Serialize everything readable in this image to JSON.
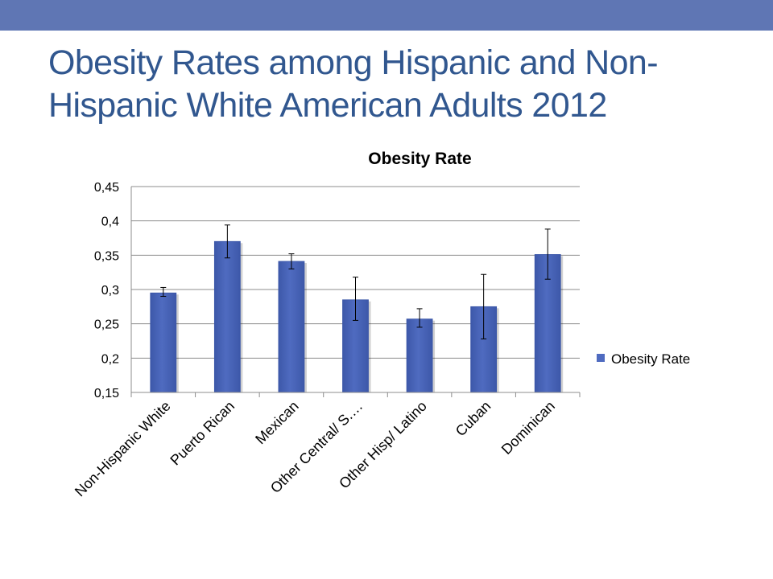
{
  "slide": {
    "title": "Obesity Rates among Hispanic and Non-Hispanic White American Adults 2012"
  },
  "colors": {
    "top_bar": "#5f76b4",
    "title_text": "#31578f",
    "bar_fill": "#4f6bc0",
    "bar_edge": "#3a56a8"
  },
  "chart_data": {
    "type": "bar",
    "title": "Obesity Rate",
    "xlabel": "",
    "ylabel": "",
    "categories": [
      "Non-Hispanic White",
      "Puerto Rican",
      "Mexican",
      "Other Central/ S.…",
      "Other Hisp/ Latino",
      "Cuban",
      "Dominican"
    ],
    "series": [
      {
        "name": "Obesity Rate",
        "values": [
          0.295,
          0.37,
          0.341,
          0.285,
          0.257,
          0.275,
          0.351
        ],
        "error_low": [
          0.29,
          0.346,
          0.33,
          0.255,
          0.245,
          0.228,
          0.315
        ],
        "error_high": [
          0.303,
          0.394,
          0.352,
          0.318,
          0.272,
          0.322,
          0.388
        ]
      }
    ],
    "ylim": [
      0.15,
      0.45
    ],
    "yticks": [
      0.15,
      0.2,
      0.25,
      0.3,
      0.35,
      0.4,
      0.45
    ],
    "ytick_labels": [
      "0,15",
      "0,2",
      "0,25",
      "0,3",
      "0,35",
      "0,4",
      "0,45"
    ],
    "grid": true,
    "legend_position": "right",
    "x_label_rotation": -45
  }
}
